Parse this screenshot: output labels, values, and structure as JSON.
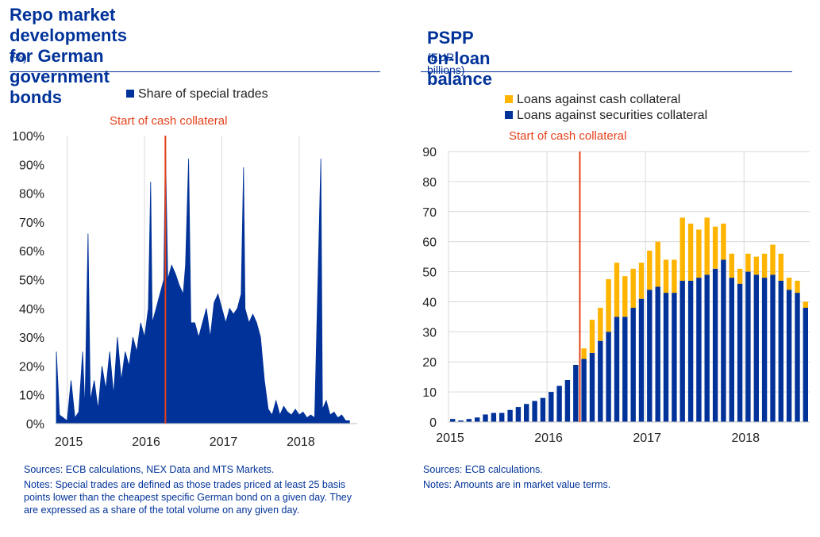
{
  "colors": {
    "blue": "#003299",
    "yellow": "#FFB400",
    "red": "#E4411B",
    "grid": "#D9D9D9",
    "text_blue": "#003299"
  },
  "left": {
    "title_line1": "Repo market developments for German",
    "title_line2": "government bonds",
    "unit": "(%)",
    "legend_label": "Share of special trades",
    "annotation": "Start of cash collateral",
    "sources": "Sources: ECB calculations, NEX Data and MTS Markets.",
    "notes": "Notes: Special trades are defined as those trades priced at least 25 basis points lower than the cheapest specific German bond on a given day. They are expressed as a share of the total volume on any given day."
  },
  "right": {
    "title": "PSPP on-loan balance",
    "unit": "(EUR billions)",
    "legend_cash": "Loans against cash collateral",
    "legend_sec": "Loans against securities collateral",
    "annotation": "Start of cash collateral",
    "sources": "Sources: ECB calculations.",
    "notes": "Notes: Amounts are in market value terms."
  },
  "chart_data": [
    {
      "type": "area",
      "series": [
        {
          "name": "Share of special trades",
          "color": "#003299"
        }
      ],
      "ylim": [
        0,
        100
      ],
      "yticks": [
        "0%",
        "10%",
        "20%",
        "30%",
        "40%",
        "50%",
        "60%",
        "70%",
        "80%",
        "90%",
        "100%"
      ],
      "xlim": [
        2014.85,
        2018.75
      ],
      "xticks": [
        "2015",
        "2016",
        "2017",
        "2018"
      ],
      "event_x": 2016.27,
      "points": [
        [
          2014.86,
          25
        ],
        [
          2014.9,
          3
        ],
        [
          2014.95,
          2
        ],
        [
          2015.0,
          1
        ],
        [
          2015.05,
          15
        ],
        [
          2015.1,
          2
        ],
        [
          2015.15,
          4
        ],
        [
          2015.2,
          25
        ],
        [
          2015.23,
          5
        ],
        [
          2015.27,
          66
        ],
        [
          2015.3,
          8
        ],
        [
          2015.35,
          15
        ],
        [
          2015.4,
          5
        ],
        [
          2015.45,
          20
        ],
        [
          2015.5,
          12
        ],
        [
          2015.55,
          25
        ],
        [
          2015.6,
          10
        ],
        [
          2015.65,
          30
        ],
        [
          2015.7,
          15
        ],
        [
          2015.75,
          25
        ],
        [
          2015.8,
          20
        ],
        [
          2015.85,
          30
        ],
        [
          2015.9,
          25
        ],
        [
          2015.95,
          35
        ],
        [
          2016.0,
          30
        ],
        [
          2016.05,
          40
        ],
        [
          2016.08,
          84
        ],
        [
          2016.1,
          35
        ],
        [
          2016.15,
          40
        ],
        [
          2016.2,
          45
        ],
        [
          2016.25,
          50
        ],
        [
          2016.27,
          98
        ],
        [
          2016.3,
          50
        ],
        [
          2016.35,
          55
        ],
        [
          2016.4,
          52
        ],
        [
          2016.45,
          48
        ],
        [
          2016.5,
          45
        ],
        [
          2016.53,
          55
        ],
        [
          2016.57,
          92
        ],
        [
          2016.6,
          35
        ],
        [
          2016.65,
          35
        ],
        [
          2016.7,
          30
        ],
        [
          2016.75,
          35
        ],
        [
          2016.8,
          40
        ],
        [
          2016.85,
          30
        ],
        [
          2016.9,
          42
        ],
        [
          2016.95,
          45
        ],
        [
          2017.0,
          40
        ],
        [
          2017.05,
          35
        ],
        [
          2017.1,
          40
        ],
        [
          2017.15,
          38
        ],
        [
          2017.2,
          40
        ],
        [
          2017.25,
          45
        ],
        [
          2017.28,
          89
        ],
        [
          2017.3,
          40
        ],
        [
          2017.35,
          35
        ],
        [
          2017.4,
          38
        ],
        [
          2017.45,
          35
        ],
        [
          2017.5,
          30
        ],
        [
          2017.55,
          15
        ],
        [
          2017.6,
          5
        ],
        [
          2017.65,
          3
        ],
        [
          2017.7,
          8
        ],
        [
          2017.75,
          3
        ],
        [
          2017.8,
          6
        ],
        [
          2017.85,
          4
        ],
        [
          2017.9,
          3
        ],
        [
          2017.95,
          5
        ],
        [
          2018.0,
          3
        ],
        [
          2018.05,
          4
        ],
        [
          2018.1,
          2
        ],
        [
          2018.15,
          3
        ],
        [
          2018.2,
          2
        ],
        [
          2018.28,
          92
        ],
        [
          2018.3,
          5
        ],
        [
          2018.35,
          8
        ],
        [
          2018.4,
          3
        ],
        [
          2018.45,
          4
        ],
        [
          2018.5,
          2
        ],
        [
          2018.55,
          3
        ],
        [
          2018.6,
          1
        ],
        [
          2018.65,
          1
        ]
      ]
    },
    {
      "type": "bar",
      "stacked": true,
      "ylim": [
        0,
        90
      ],
      "yticks": [
        "0",
        "10",
        "20",
        "30",
        "40",
        "50",
        "60",
        "70",
        "80",
        "90"
      ],
      "xticks": [
        "2015",
        "2016",
        "2017",
        "2018"
      ],
      "bars_per_year": 12,
      "first_year": 2015,
      "event_index": 16,
      "series": [
        {
          "name": "Loans against securities collateral",
          "color": "#003299",
          "values": [
            1,
            0.5,
            1,
            1.5,
            2.5,
            3,
            3,
            4,
            5,
            6,
            7,
            8,
            10,
            12,
            14,
            19,
            21,
            23,
            27,
            30,
            35,
            35,
            38,
            41,
            44,
            45,
            43,
            43,
            47,
            47,
            48,
            49,
            51,
            54,
            48,
            46,
            50,
            49,
            48,
            49,
            47,
            44,
            43,
            38
          ]
        },
        {
          "name": "Loans against cash collateral",
          "color": "#FFB400",
          "values": [
            0,
            0,
            0,
            0,
            0,
            0,
            0,
            0,
            0,
            0,
            0,
            0,
            0,
            0,
            0,
            0,
            3.5,
            11,
            11,
            17.5,
            18,
            13.5,
            13,
            12,
            13,
            15,
            11,
            11,
            21,
            19,
            16,
            19,
            14,
            12,
            8,
            5,
            6,
            6,
            8,
            10,
            9,
            4,
            4,
            2
          ]
        }
      ]
    }
  ]
}
